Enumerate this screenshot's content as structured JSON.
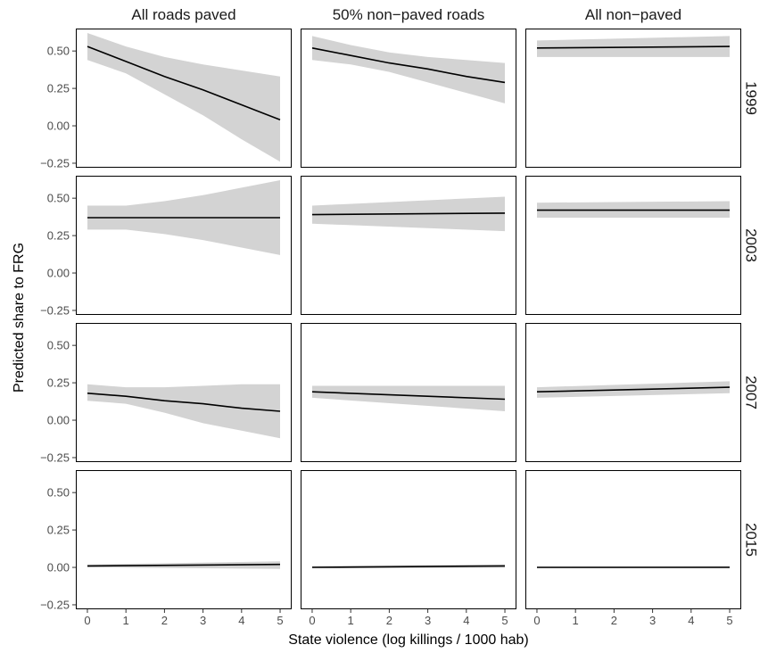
{
  "chart_data": {
    "type": "line",
    "xlabel": "State violence (log killings / 1000 hab)",
    "ylabel": "Predicted share to FRG",
    "xlim": [
      -0.3,
      5.3
    ],
    "ylim": [
      -0.28,
      0.65
    ],
    "x_ticks": [
      0,
      1,
      2,
      3,
      4,
      5
    ],
    "x_tick_labels": [
      "0",
      "1",
      "2",
      "3",
      "4",
      "5"
    ],
    "y_ticks": [
      -0.25,
      0,
      0.25,
      0.5
    ],
    "y_tick_labels": [
      "−0.25",
      "0.00",
      "0.25",
      "0.50"
    ],
    "grid": false,
    "colors": {
      "line": "#000000",
      "ribbon": "#d3d3d3",
      "frame": "#000000"
    },
    "columns": [
      "All roads paved",
      "50% non−paved roads",
      "All non−paved"
    ],
    "rows": [
      "1999",
      "2003",
      "2007",
      "2015"
    ],
    "panels": [
      {
        "row": "1999",
        "column": "All roads paved",
        "x": [
          0,
          1,
          2,
          3,
          4,
          5
        ],
        "y": [
          0.53,
          0.43,
          0.33,
          0.24,
          0.14,
          0.04
        ],
        "lower": [
          0.44,
          0.35,
          0.21,
          0.07,
          -0.09,
          -0.24
        ],
        "upper": [
          0.62,
          0.53,
          0.46,
          0.41,
          0.37,
          0.33
        ]
      },
      {
        "row": "1999",
        "column": "50% non−paved roads",
        "x": [
          0,
          1,
          2,
          3,
          4,
          5
        ],
        "y": [
          0.52,
          0.47,
          0.42,
          0.38,
          0.33,
          0.29
        ],
        "lower": [
          0.44,
          0.41,
          0.36,
          0.29,
          0.22,
          0.15
        ],
        "upper": [
          0.6,
          0.54,
          0.49,
          0.46,
          0.44,
          0.42
        ]
      },
      {
        "row": "1999",
        "column": "All non−paved",
        "x": [
          0,
          5
        ],
        "y": [
          0.52,
          0.53
        ],
        "lower": [
          0.46,
          0.46
        ],
        "upper": [
          0.57,
          0.6
        ]
      },
      {
        "row": "2003",
        "column": "All roads paved",
        "x": [
          0,
          1,
          2,
          3,
          4,
          5
        ],
        "y": [
          0.37,
          0.37,
          0.37,
          0.37,
          0.37,
          0.37
        ],
        "lower": [
          0.29,
          0.29,
          0.26,
          0.22,
          0.17,
          0.12
        ],
        "upper": [
          0.45,
          0.45,
          0.48,
          0.52,
          0.57,
          0.62
        ]
      },
      {
        "row": "2003",
        "column": "50% non−paved roads",
        "x": [
          0,
          5
        ],
        "y": [
          0.39,
          0.4
        ],
        "lower": [
          0.33,
          0.28
        ],
        "upper": [
          0.45,
          0.51
        ]
      },
      {
        "row": "2003",
        "column": "All non−paved",
        "x": [
          0,
          5
        ],
        "y": [
          0.42,
          0.42
        ],
        "lower": [
          0.37,
          0.37
        ],
        "upper": [
          0.47,
          0.48
        ]
      },
      {
        "row": "2007",
        "column": "All roads paved",
        "x": [
          0,
          1,
          2,
          3,
          4,
          5
        ],
        "y": [
          0.18,
          0.16,
          0.13,
          0.11,
          0.08,
          0.06
        ],
        "lower": [
          0.13,
          0.11,
          0.05,
          -0.02,
          -0.07,
          -0.12
        ],
        "upper": [
          0.24,
          0.22,
          0.22,
          0.23,
          0.24,
          0.24
        ]
      },
      {
        "row": "2007",
        "column": "50% non−paved roads",
        "x": [
          0,
          5
        ],
        "y": [
          0.19,
          0.14
        ],
        "lower": [
          0.15,
          0.06
        ],
        "upper": [
          0.23,
          0.23
        ]
      },
      {
        "row": "2007",
        "column": "All non−paved",
        "x": [
          0,
          5
        ],
        "y": [
          0.19,
          0.22
        ],
        "lower": [
          0.15,
          0.18
        ],
        "upper": [
          0.22,
          0.26
        ]
      },
      {
        "row": "2015",
        "column": "All roads paved",
        "x": [
          0,
          5
        ],
        "y": [
          0.01,
          0.02
        ],
        "lower": [
          0.0,
          -0.01
        ],
        "upper": [
          0.02,
          0.04
        ]
      },
      {
        "row": "2015",
        "column": "50% non−paved roads",
        "x": [
          0,
          5
        ],
        "y": [
          0.0,
          0.01
        ],
        "lower": [
          -0.005,
          -0.003
        ],
        "upper": [
          0.01,
          0.02
        ]
      },
      {
        "row": "2015",
        "column": "All non−paved",
        "x": [
          0,
          5
        ],
        "y": [
          0.0,
          0.0
        ],
        "lower": [
          -0.005,
          -0.004
        ],
        "upper": [
          0.005,
          0.01
        ]
      }
    ]
  }
}
